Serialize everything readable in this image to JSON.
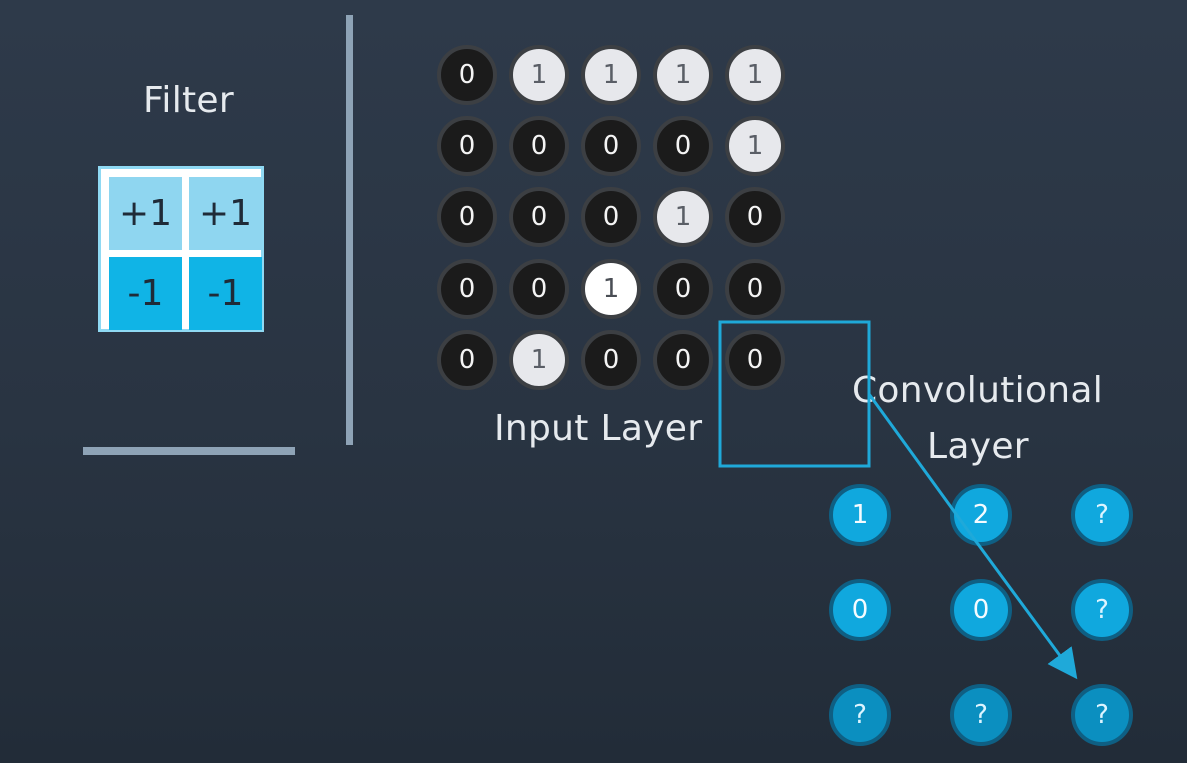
{
  "filter": {
    "title": "Filter",
    "cells": [
      "+1",
      "+1",
      "-1",
      "-1"
    ]
  },
  "input_layer": {
    "title": "Input Layer",
    "rows": [
      [
        "0",
        "1",
        "1",
        "1",
        "1"
      ],
      [
        "0",
        "0",
        "0",
        "0",
        "1"
      ],
      [
        "0",
        "0",
        "0",
        "1",
        "0"
      ],
      [
        "0",
        "0",
        "1",
        "0",
        "0"
      ],
      [
        "0",
        "1",
        "0",
        "0",
        "0"
      ]
    ]
  },
  "conv_layer": {
    "title_line1": "Convolutional",
    "title_line2": "Layer",
    "rows": [
      [
        "1",
        "2",
        "?"
      ],
      [
        "0",
        "0",
        "?"
      ],
      [
        "?",
        "?",
        "?"
      ]
    ]
  },
  "colors": {
    "accent": "#10b4e6",
    "filter_positive": "#8fd6f0",
    "filter_negative": "#10b4e6",
    "highlight_box": "#1fa9d9"
  }
}
